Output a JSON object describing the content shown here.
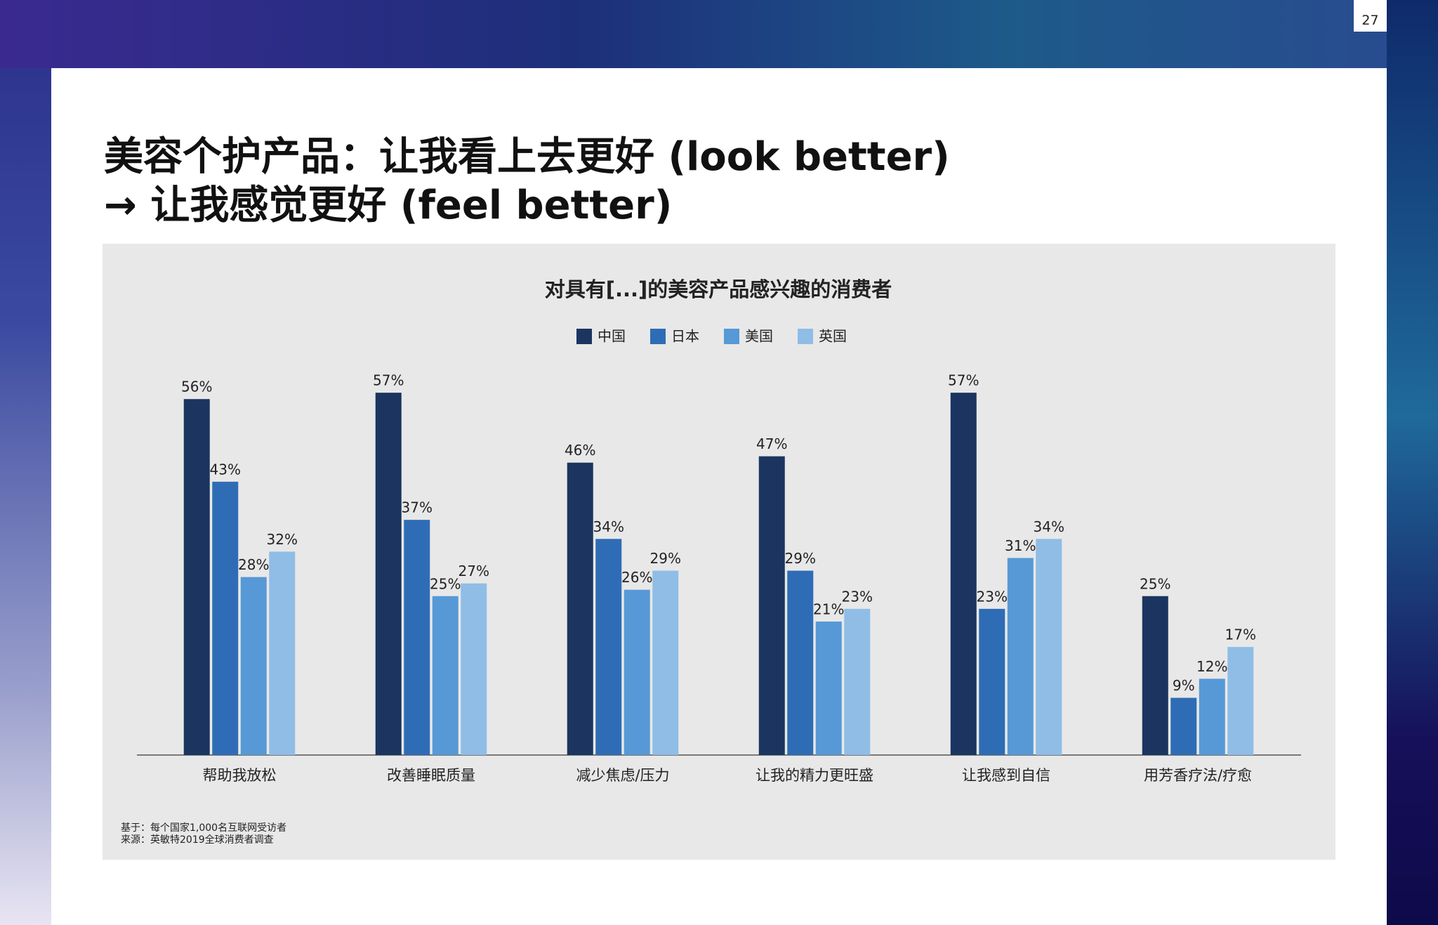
{
  "page_number": "27",
  "title": [
    "美容个护产品：让我看上去更好 (look better)",
    "→ 让我感觉更好 (feel better)"
  ],
  "chart_data": {
    "type": "bar",
    "title": "对具有[...]的美容产品感兴趣的消费者",
    "categories": [
      "帮助我放松",
      "改善睡眠质量",
      "减少焦虑/压力",
      "让我的精力更旺盛",
      "让我感到自信",
      "用芳香疗法/疗愈"
    ],
    "series": [
      {
        "name": "中国",
        "color": "#1b3560",
        "values": [
          56,
          57,
          46,
          47,
          57,
          25
        ],
        "value_labels": [
          "56%",
          "57%",
          "46%",
          "47%",
          "57%",
          "25%"
        ]
      },
      {
        "name": "日本",
        "color": "#2e6db5",
        "values": [
          43,
          37,
          34,
          29,
          23,
          9
        ],
        "value_labels": [
          "43%",
          "37%",
          "34%",
          "29%",
          "23%",
          "9%"
        ]
      },
      {
        "name": "美国",
        "color": "#5699d6",
        "values": [
          28,
          25,
          26,
          21,
          31,
          12
        ],
        "value_labels": [
          "28%",
          "25%",
          "26%",
          "21%",
          "31%",
          "12%"
        ]
      },
      {
        "name": "英国",
        "color": "#8fbde6",
        "values": [
          32,
          27,
          29,
          23,
          34,
          17
        ],
        "value_labels": [
          "32%",
          "27%",
          "29%",
          "23%",
          "34%",
          "17%"
        ]
      }
    ],
    "notes": [
      "基于：每个国家1,000名互联网受访者",
      "来源：英敏特2019全球消费者调查"
    ]
  }
}
